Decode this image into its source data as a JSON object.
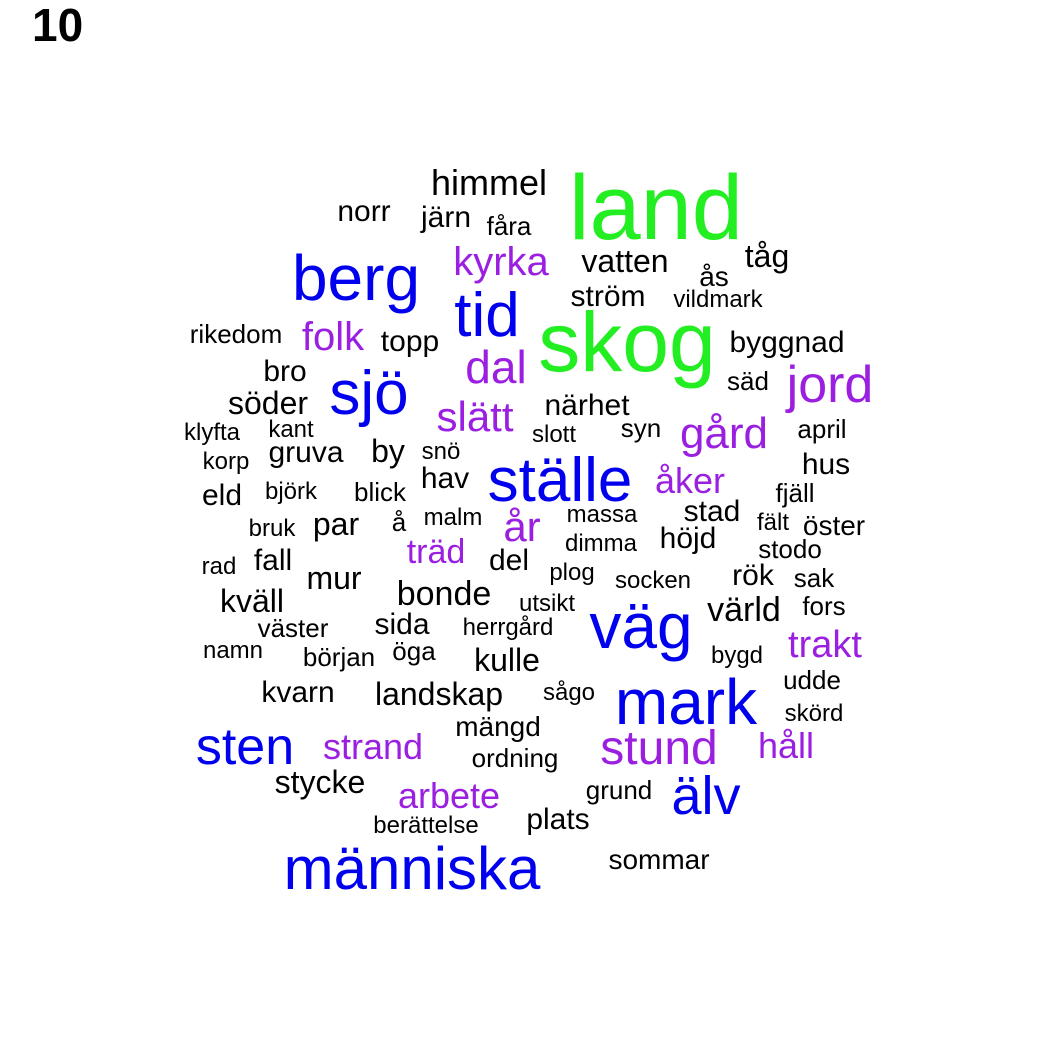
{
  "panel_label": "10",
  "colors": {
    "green": "#22ee22",
    "blue": "#0000ee",
    "purple": "#9a1fe0",
    "black": "#000000"
  },
  "words": [
    {
      "text": "land",
      "tier": "green"
    },
    {
      "text": "skog",
      "tier": "green"
    },
    {
      "text": "berg",
      "tier": "blue"
    },
    {
      "text": "tid",
      "tier": "blue"
    },
    {
      "text": "sjö",
      "tier": "blue"
    },
    {
      "text": "ställe",
      "tier": "blue"
    },
    {
      "text": "väg",
      "tier": "blue"
    },
    {
      "text": "mark",
      "tier": "blue"
    },
    {
      "text": "sten",
      "tier": "blue"
    },
    {
      "text": "älv",
      "tier": "blue"
    },
    {
      "text": "människa",
      "tier": "blue"
    },
    {
      "text": "kyrka",
      "tier": "purple"
    },
    {
      "text": "folk",
      "tier": "purple"
    },
    {
      "text": "dal",
      "tier": "purple"
    },
    {
      "text": "jord",
      "tier": "purple"
    },
    {
      "text": "slätt",
      "tier": "purple"
    },
    {
      "text": "gård",
      "tier": "purple"
    },
    {
      "text": "åker",
      "tier": "purple"
    },
    {
      "text": "år",
      "tier": "purple"
    },
    {
      "text": "träd",
      "tier": "purple"
    },
    {
      "text": "trakt",
      "tier": "purple"
    },
    {
      "text": "strand",
      "tier": "purple"
    },
    {
      "text": "stund",
      "tier": "purple"
    },
    {
      "text": "håll",
      "tier": "purple"
    },
    {
      "text": "arbete",
      "tier": "purple"
    },
    {
      "text": "himmel",
      "tier": "black"
    },
    {
      "text": "norr",
      "tier": "black"
    },
    {
      "text": "järn",
      "tier": "black"
    },
    {
      "text": "fåra",
      "tier": "black"
    },
    {
      "text": "vatten",
      "tier": "black"
    },
    {
      "text": "tåg",
      "tier": "black"
    },
    {
      "text": "ås",
      "tier": "black"
    },
    {
      "text": "ström",
      "tier": "black"
    },
    {
      "text": "vildmark",
      "tier": "black"
    },
    {
      "text": "rikedom",
      "tier": "black"
    },
    {
      "text": "topp",
      "tier": "black"
    },
    {
      "text": "byggnad",
      "tier": "black"
    },
    {
      "text": "bro",
      "tier": "black"
    },
    {
      "text": "säd",
      "tier": "black"
    },
    {
      "text": "söder",
      "tier": "black"
    },
    {
      "text": "närhet",
      "tier": "black"
    },
    {
      "text": "klyfta",
      "tier": "black"
    },
    {
      "text": "kant",
      "tier": "black"
    },
    {
      "text": "slott",
      "tier": "black"
    },
    {
      "text": "syn",
      "tier": "black"
    },
    {
      "text": "april",
      "tier": "black"
    },
    {
      "text": "korp",
      "tier": "black"
    },
    {
      "text": "gruva",
      "tier": "black"
    },
    {
      "text": "by",
      "tier": "black"
    },
    {
      "text": "snö",
      "tier": "black"
    },
    {
      "text": "hus",
      "tier": "black"
    },
    {
      "text": "hav",
      "tier": "black"
    },
    {
      "text": "eld",
      "tier": "black"
    },
    {
      "text": "björk",
      "tier": "black"
    },
    {
      "text": "blick",
      "tier": "black"
    },
    {
      "text": "fjäll",
      "tier": "black"
    },
    {
      "text": "bruk",
      "tier": "black"
    },
    {
      "text": "par",
      "tier": "black"
    },
    {
      "text": "å",
      "tier": "black"
    },
    {
      "text": "malm",
      "tier": "black"
    },
    {
      "text": "massa",
      "tier": "black"
    },
    {
      "text": "stad",
      "tier": "black"
    },
    {
      "text": "fält",
      "tier": "black"
    },
    {
      "text": "öster",
      "tier": "black"
    },
    {
      "text": "dimma",
      "tier": "black"
    },
    {
      "text": "höjd",
      "tier": "black"
    },
    {
      "text": "stodo",
      "tier": "black"
    },
    {
      "text": "rad",
      "tier": "black"
    },
    {
      "text": "fall",
      "tier": "black"
    },
    {
      "text": "del",
      "tier": "black"
    },
    {
      "text": "mur",
      "tier": "black"
    },
    {
      "text": "plog",
      "tier": "black"
    },
    {
      "text": "socken",
      "tier": "black"
    },
    {
      "text": "rök",
      "tier": "black"
    },
    {
      "text": "sak",
      "tier": "black"
    },
    {
      "text": "kväll",
      "tier": "black"
    },
    {
      "text": "bonde",
      "tier": "black"
    },
    {
      "text": "utsikt",
      "tier": "black"
    },
    {
      "text": "värld",
      "tier": "black"
    },
    {
      "text": "fors",
      "tier": "black"
    },
    {
      "text": "väster",
      "tier": "black"
    },
    {
      "text": "sida",
      "tier": "black"
    },
    {
      "text": "herrgård",
      "tier": "black"
    },
    {
      "text": "namn",
      "tier": "black"
    },
    {
      "text": "början",
      "tier": "black"
    },
    {
      "text": "öga",
      "tier": "black"
    },
    {
      "text": "kulle",
      "tier": "black"
    },
    {
      "text": "bygd",
      "tier": "black"
    },
    {
      "text": "udde",
      "tier": "black"
    },
    {
      "text": "kvarn",
      "tier": "black"
    },
    {
      "text": "landskap",
      "tier": "black"
    },
    {
      "text": "sågo",
      "tier": "black"
    },
    {
      "text": "skörd",
      "tier": "black"
    },
    {
      "text": "mängd",
      "tier": "black"
    },
    {
      "text": "ordning",
      "tier": "black"
    },
    {
      "text": "stycke",
      "tier": "black"
    },
    {
      "text": "grund",
      "tier": "black"
    },
    {
      "text": "plats",
      "tier": "black"
    },
    {
      "text": "berättelse",
      "tier": "black"
    },
    {
      "text": "sommar",
      "tier": "black"
    }
  ]
}
